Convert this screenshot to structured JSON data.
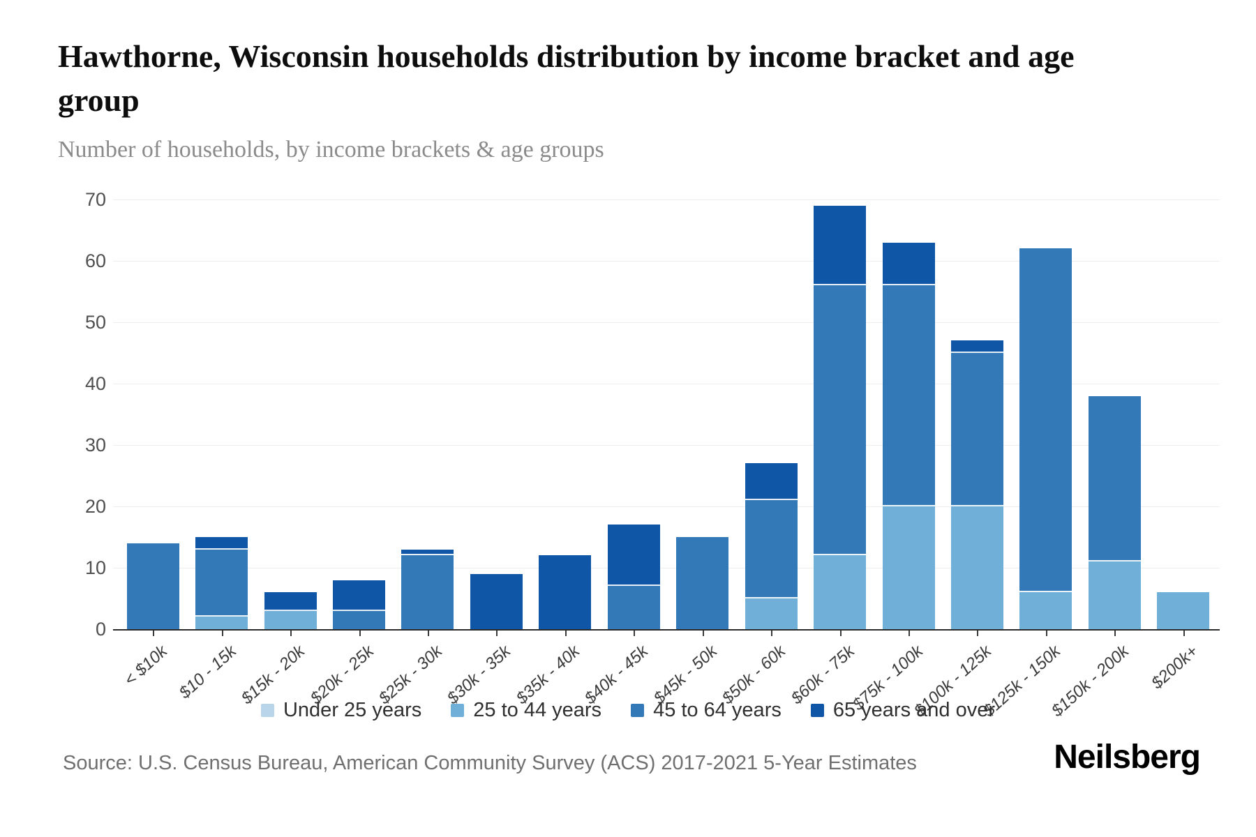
{
  "header": {
    "title": "Hawthorne, Wisconsin households distribution by income bracket and age group",
    "subtitle": "Number of households, by income brackets & age groups"
  },
  "footer": {
    "source": "Source: U.S. Census Bureau, American Community Survey (ACS) 2017-2021 5-Year Estimates",
    "brand": "Neilsberg"
  },
  "colors": {
    "axis": "#2b2b2b",
    "gridline": "#ededed",
    "under_25": "#b9d5e9",
    "age_25_44": "#6fafd8",
    "age_45_64": "#3379b8",
    "age_65_over": "#0f57a6"
  },
  "chart_data": {
    "type": "bar",
    "variant": "stacked",
    "title": "Hawthorne, Wisconsin households distribution by income bracket and age group",
    "subtitle": "Number of households, by income brackets & age groups",
    "xlabel": "",
    "ylabel": "Number of households",
    "ylim": [
      0,
      70
    ],
    "ytick_step": 10,
    "grid": "horizontal",
    "legend_position": "bottom",
    "categories": [
      "< $10k",
      "$10 - 15k",
      "$15k - 20k",
      "$20k - 25k",
      "$25k - 30k",
      "$30k - 35k",
      "$35k - 40k",
      "$40k - 45k",
      "$45k - 50k",
      "$50k - 60k",
      "$60k - 75k",
      "$75k - 100k",
      "$100k - 125k",
      "$125k - 150k",
      "$150k - 200k",
      "$200k+"
    ],
    "series": [
      {
        "name": "Under 25 years",
        "color": "#b9d5e9",
        "values": [
          0,
          0,
          0,
          0,
          0,
          0,
          0,
          0,
          0,
          0,
          0,
          0,
          0,
          0,
          0,
          0
        ]
      },
      {
        "name": "25 to 44 years",
        "color": "#6fafd8",
        "values": [
          0,
          2,
          3,
          0,
          0,
          0,
          0,
          0,
          0,
          5,
          12,
          20,
          20,
          6,
          11,
          6
        ]
      },
      {
        "name": "45 to 64 years",
        "color": "#3379b8",
        "values": [
          14,
          11,
          0,
          3,
          12,
          0,
          0,
          7,
          15,
          16,
          44,
          36,
          25,
          56,
          27,
          0
        ]
      },
      {
        "name": "65 years and over",
        "color": "#0f57a6",
        "values": [
          0,
          2,
          3,
          5,
          1,
          9,
          12,
          10,
          0,
          6,
          13,
          7,
          2,
          0,
          0,
          0
        ]
      }
    ]
  }
}
